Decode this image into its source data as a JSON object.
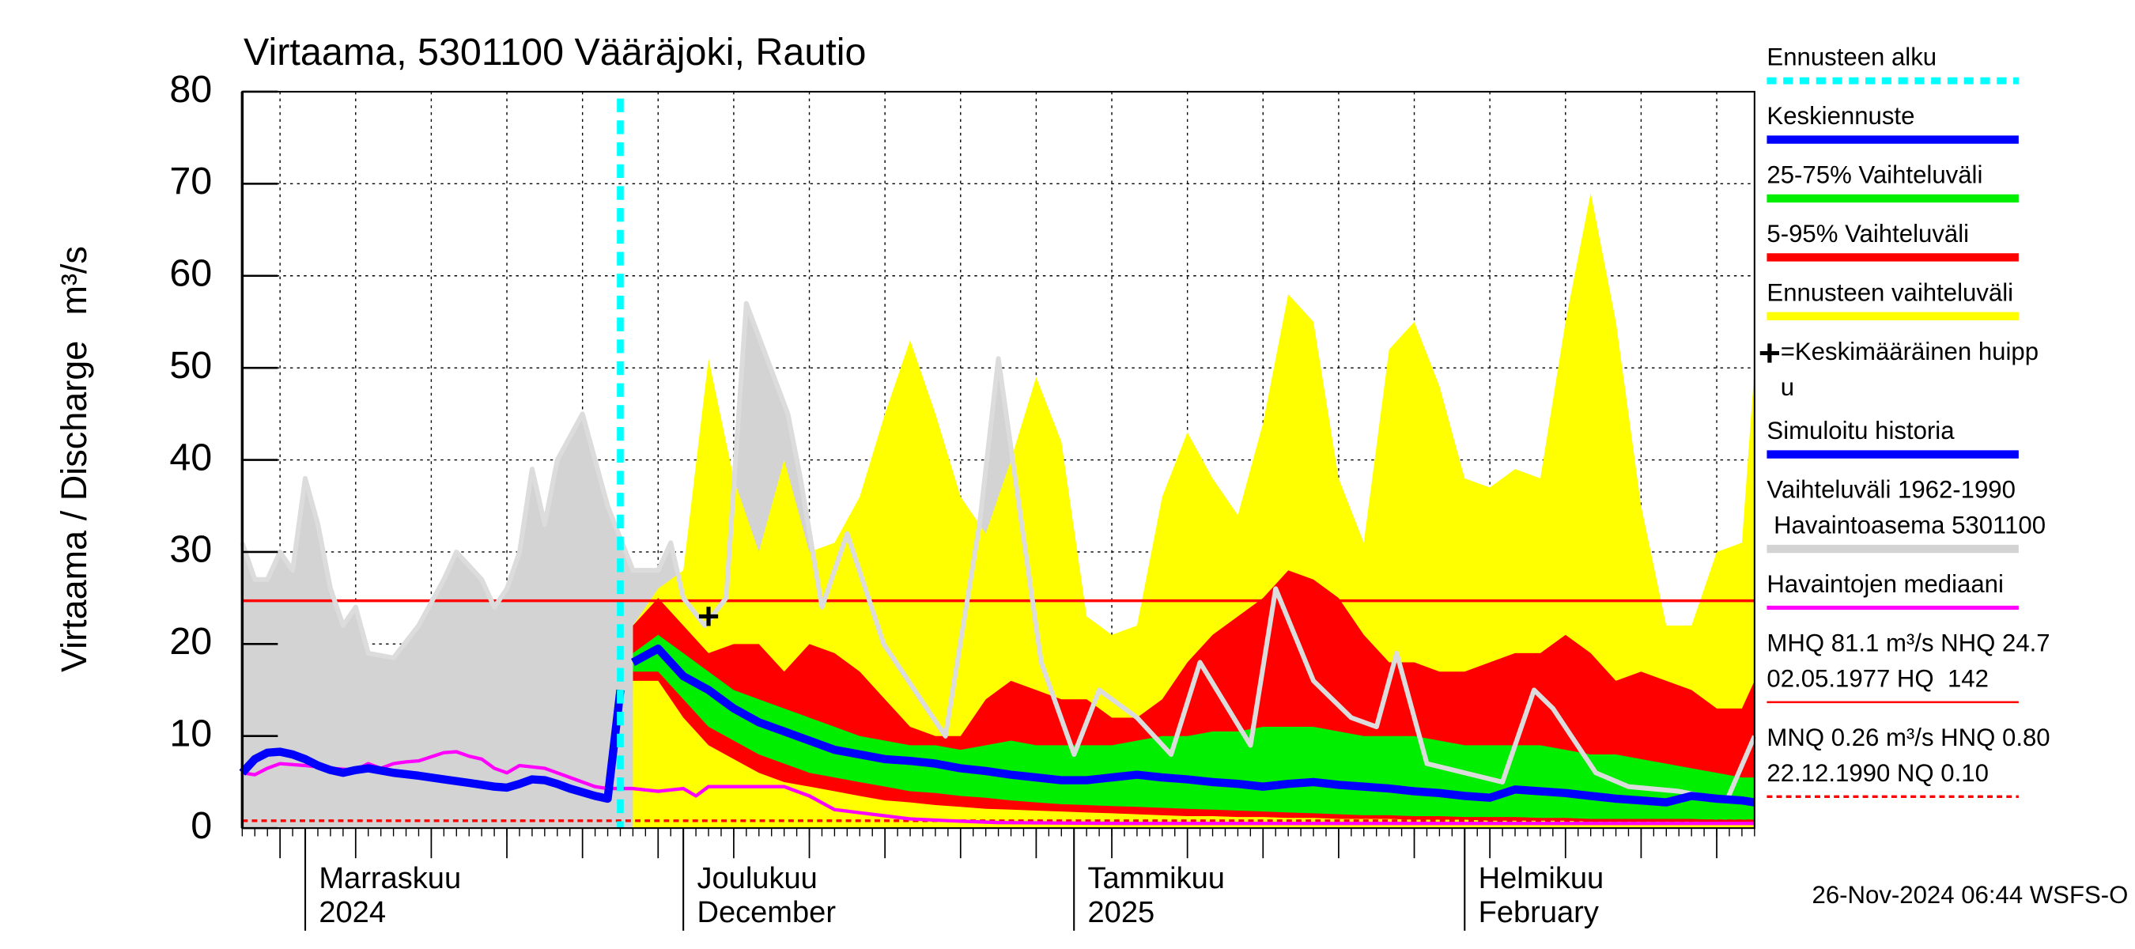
{
  "chart_data": {
    "type": "hydrograph",
    "title": "Virtaama, 5301100 Vääräjoki, Rautio",
    "ylabel": "Virtaama / Discharge",
    "yunit": "m³/s",
    "footer": "26-Nov-2024 06:44 WSFS-O",
    "xlim": [
      0,
      120
    ],
    "ylim": [
      0,
      80
    ],
    "yticks": [
      0,
      10,
      20,
      30,
      40,
      50,
      60,
      70,
      80
    ],
    "xticks": [
      {
        "value": 5,
        "label": "Marraskuu",
        "sublabel": "2024"
      },
      {
        "value": 35,
        "label": "Joulukuu",
        "sublabel": "December"
      },
      {
        "value": 66,
        "label": "Tammikuu",
        "sublabel": "2025"
      },
      {
        "value": 97,
        "label": "Helmikuu",
        "sublabel": "February"
      }
    ],
    "xgrid": [
      3,
      9,
      15,
      21,
      27,
      33,
      39,
      45,
      51,
      57,
      63,
      69,
      75,
      81,
      87,
      93,
      99,
      105,
      111,
      117
    ],
    "grid": true,
    "forecast_start": 30,
    "forecast_color": "#00ffff",
    "forecast_label": [
      "Ennusteen alku"
    ],
    "peak": {
      "x": 37,
      "y": 23,
      "label": [
        "=Keskimääräinen huipp",
        "u"
      ]
    },
    "reference_lines": [
      {
        "value": 24.7,
        "color": "#ff0000",
        "style": "solid",
        "label": [
          "MHQ 81.1 m³/s NHQ 24.7",
          "02.05.1977 HQ  142"
        ]
      },
      {
        "value": 0.8,
        "color": "#ff0000",
        "style": "dashed",
        "label": [
          "MNQ 0.26 m³/s HNQ 0.80",
          "22.12.1990 NQ 0.10"
        ]
      }
    ],
    "series": [
      {
        "name": [
          "Vaihteluväli 1962-1990",
          " Havaintoasema 5301100"
        ],
        "color": "#d3d3d3",
        "kind": "area",
        "x": [
          0,
          1,
          2,
          3,
          4,
          5,
          6,
          7,
          8,
          9,
          10,
          12,
          14,
          16,
          17,
          19,
          20,
          21,
          22,
          23,
          24,
          25,
          27,
          29,
          31,
          33,
          34,
          35,
          36.7,
          38.4,
          40,
          43.3,
          44.3,
          46,
          48,
          50.9,
          55.8,
          58.5,
          60,
          63.4,
          66,
          68,
          71,
          73.7,
          76,
          80,
          82,
          85,
          88,
          90,
          91.6,
          94,
          100,
          102.5,
          104,
          107.4,
          110,
          114,
          117.8,
          120
        ],
        "values": [
          31,
          27,
          27,
          30,
          28,
          38,
          33,
          26,
          22,
          24,
          19,
          18.5,
          22,
          27,
          30,
          27,
          24,
          26,
          30,
          39,
          33,
          40,
          45,
          35,
          28,
          28,
          31,
          25,
          22,
          25,
          57,
          45,
          38,
          24,
          32,
          20,
          10,
          33,
          51,
          18,
          8,
          15,
          12,
          8,
          18,
          9,
          26,
          16,
          12,
          11,
          19,
          7,
          5,
          15,
          13,
          6,
          4.5,
          4,
          3,
          10
        ]
      },
      {
        "name": [
          "Ennusteen vaihteluväli"
        ],
        "color": "#ffff00",
        "kind": "area",
        "x": [
          31,
          33,
          35,
          37,
          39,
          41,
          43,
          45,
          47,
          49,
          51,
          53,
          55,
          57,
          59,
          61,
          63,
          65,
          67,
          69,
          71,
          73,
          75,
          77,
          79,
          81,
          83,
          85,
          87,
          89,
          91,
          93,
          95,
          97,
          99,
          101,
          103,
          105,
          107,
          109,
          111,
          113,
          115,
          117,
          119,
          120
        ],
        "values": [
          22,
          26,
          28,
          51,
          38,
          30,
          40,
          30,
          31,
          36,
          45,
          53,
          45,
          36,
          32,
          40,
          49,
          42,
          23,
          21,
          22,
          36,
          43,
          38,
          34,
          44,
          58,
          55,
          38,
          31,
          52,
          55,
          48,
          38,
          37,
          39,
          38,
          55,
          69,
          55,
          35,
          22,
          22,
          30,
          31,
          50
        ]
      },
      {
        "name": [
          "5-95% Vaihteluväli"
        ],
        "color": "#ff0000",
        "kind": "band",
        "x": [
          31,
          33,
          35,
          37,
          39,
          41,
          43,
          45,
          47,
          49,
          51,
          53,
          55,
          57,
          59,
          61,
          63,
          65,
          67,
          69,
          71,
          73,
          75,
          77,
          79,
          81,
          83,
          85,
          87,
          89,
          91,
          93,
          95,
          97,
          99,
          101,
          103,
          105,
          107,
          109,
          111,
          113,
          115,
          117,
          119,
          120
        ],
        "upper": [
          22,
          25,
          22,
          19,
          20,
          20,
          17,
          20,
          19,
          17,
          14,
          11,
          10,
          10,
          14,
          16,
          15,
          14,
          14,
          12,
          12,
          14,
          18,
          21,
          23,
          25,
          28,
          27,
          25,
          21,
          18,
          18,
          17,
          17,
          18,
          19,
          19,
          21,
          19,
          16,
          17,
          16,
          15,
          13,
          13,
          16
        ],
        "lower": [
          16,
          16,
          12,
          9,
          7.5,
          6,
          5,
          4.5,
          4,
          3.5,
          3,
          2.8,
          2.5,
          2.3,
          2.1,
          2,
          1.9,
          1.8,
          1.7,
          1.6,
          1.5,
          1.4,
          1.3,
          1.3,
          1.2,
          1.2,
          1.1,
          1.1,
          1,
          1,
          1,
          0.9,
          0.9,
          0.9,
          0.8,
          0.8,
          0.8,
          0.8,
          0.7,
          0.7,
          0.7,
          0.7,
          0.7,
          0.6,
          0.6,
          0.6
        ]
      },
      {
        "name": [
          "25-75% Vaihteluväli"
        ],
        "color": "#00ee00",
        "kind": "band",
        "x": [
          31,
          33,
          35,
          37,
          39,
          41,
          43,
          45,
          47,
          49,
          51,
          53,
          55,
          57,
          59,
          61,
          63,
          65,
          67,
          69,
          71,
          73,
          75,
          77,
          79,
          81,
          83,
          85,
          87,
          89,
          91,
          93,
          95,
          97,
          99,
          101,
          103,
          105,
          107,
          109,
          111,
          113,
          115,
          117,
          119,
          120
        ],
        "upper": [
          19,
          21,
          19,
          17,
          15,
          14,
          13,
          12,
          11,
          10,
          9.5,
          9,
          9,
          8.5,
          9,
          9.5,
          9,
          9,
          9,
          9,
          9.5,
          10,
          10,
          10.5,
          10.5,
          11,
          11,
          11,
          10.5,
          10,
          10,
          10,
          9.5,
          9,
          9,
          9,
          9,
          8.5,
          8,
          8,
          7.5,
          7,
          6.5,
          6,
          5.5,
          5.5
        ],
        "lower": [
          17,
          17,
          14,
          11,
          9.5,
          8,
          7,
          6,
          5.5,
          5,
          4.5,
          4,
          3.8,
          3.5,
          3.3,
          3,
          2.8,
          2.6,
          2.5,
          2.4,
          2.3,
          2.2,
          2.1,
          2,
          1.9,
          1.8,
          1.7,
          1.6,
          1.5,
          1.4,
          1.4,
          1.3,
          1.3,
          1.2,
          1.2,
          1.2,
          1.1,
          1.1,
          1,
          1,
          1,
          1,
          1,
          0.9,
          0.9,
          0.9
        ]
      },
      {
        "name": [
          "Havaintojen mediaani"
        ],
        "color": "#ff00ff",
        "kind": "line",
        "x": [
          0,
          1,
          2,
          3,
          5,
          7,
          9,
          10,
          11,
          12,
          13,
          14,
          16,
          17,
          18,
          19,
          20,
          21,
          22,
          24,
          26,
          28,
          29,
          31,
          33,
          35,
          36,
          37,
          40,
          43,
          45,
          47,
          50,
          53,
          56,
          60,
          70,
          80,
          90,
          100,
          110,
          120
        ],
        "values": [
          6,
          5.8,
          6.5,
          7,
          6.8,
          6.5,
          6.3,
          7,
          6.5,
          7,
          7.2,
          7.3,
          8.2,
          8.3,
          7.8,
          7.5,
          6.5,
          6,
          6.8,
          6.5,
          5.5,
          4.5,
          4.3,
          4.3,
          4,
          4.3,
          3.5,
          4.5,
          4.5,
          4.5,
          3.5,
          2,
          1.5,
          1,
          0.8,
          0.6,
          0.5,
          0.5,
          0.5,
          0.5,
          0.5,
          0.5
        ]
      },
      {
        "name": [
          "Simuloitu historia"
        ],
        "color": "#0000ff",
        "kind": "line",
        "x": [
          0,
          1,
          2,
          3,
          4,
          5,
          6,
          7,
          8,
          9,
          10,
          12,
          14,
          16,
          18,
          20,
          21,
          22,
          23,
          24,
          25,
          26,
          27,
          28,
          29,
          30
        ],
        "values": [
          6,
          7.5,
          8.2,
          8.3,
          8,
          7.5,
          6.8,
          6.3,
          6,
          6.3,
          6.5,
          6,
          5.7,
          5.3,
          4.9,
          4.5,
          4.4,
          4.8,
          5.3,
          5.2,
          4.8,
          4.3,
          3.9,
          3.5,
          3.2,
          15
        ]
      },
      {
        "name": [
          "Keskiennuste"
        ],
        "color": "#0000ff",
        "kind": "line",
        "x": [
          31,
          33,
          35,
          37,
          39,
          41,
          43,
          45,
          47,
          49,
          51,
          53,
          55,
          57,
          59,
          61,
          63,
          65,
          67,
          69,
          71,
          73,
          75,
          77,
          79,
          81,
          83,
          85,
          87,
          89,
          91,
          93,
          95,
          97,
          99,
          101,
          103,
          105,
          107,
          109,
          111,
          113,
          115,
          117,
          119,
          120
        ],
        "values": [
          18,
          19.5,
          16.5,
          15,
          13,
          11.5,
          10.5,
          9.5,
          8.5,
          8,
          7.5,
          7.3,
          7,
          6.5,
          6.2,
          5.8,
          5.5,
          5.2,
          5.2,
          5.5,
          5.8,
          5.5,
          5.3,
          5,
          4.8,
          4.5,
          4.8,
          5,
          4.7,
          4.5,
          4.3,
          4,
          3.8,
          3.5,
          3.3,
          4.2,
          4,
          3.8,
          3.5,
          3.2,
          3,
          2.8,
          3.5,
          3.2,
          3,
          2.8
        ]
      }
    ]
  }
}
